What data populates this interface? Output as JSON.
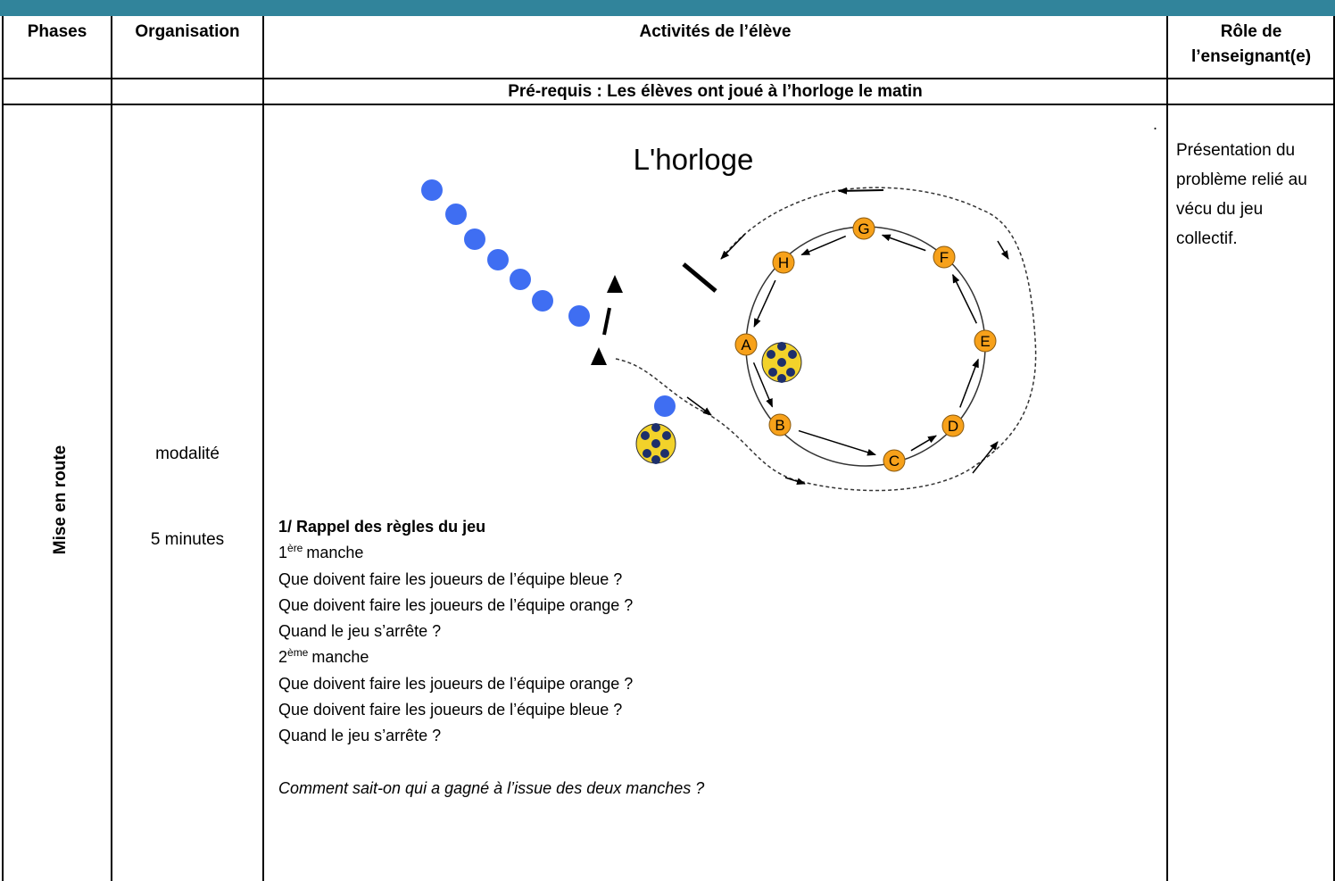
{
  "header": {
    "columns": [
      "Phases",
      "Organisation",
      "Activités de l’élève",
      "Rôle de l’enseignant(e)"
    ]
  },
  "prerequisite": "Pré-requis : Les élèves ont joué à l’horloge le matin",
  "row": {
    "phase": "Mise en route",
    "organisation": [
      "modalité",
      "5 minutes"
    ],
    "activities": {
      "heading": "1/ Rappel des règles du jeu",
      "rounds": [
        {
          "number": "1",
          "suffix": "ère",
          "label": "manche",
          "questions": [
            "Que doivent faire les joueurs de l’équipe bleue ?",
            "Que doivent faire les joueurs de l’équipe orange ?",
            "Quand le jeu s’arrête ?"
          ]
        },
        {
          "number": "2",
          "suffix": "ème",
          "label": "manche",
          "questions": [
            "Que doivent faire les joueurs de l’équipe orange ?",
            "Que doivent faire les joueurs de l’équipe bleue ?",
            "Quand le jeu s’arrête ?"
          ]
        }
      ],
      "conclusion": "Comment sait-on qui a gagné à l’issue des deux manches ?"
    },
    "role": "Présentation du problème relié au vécu du jeu collectif."
  },
  "diagram": {
    "title": "L'horloge",
    "nodes": [
      "A",
      "B",
      "C",
      "D",
      "E",
      "F",
      "G",
      "H"
    ],
    "mark": "."
  }
}
